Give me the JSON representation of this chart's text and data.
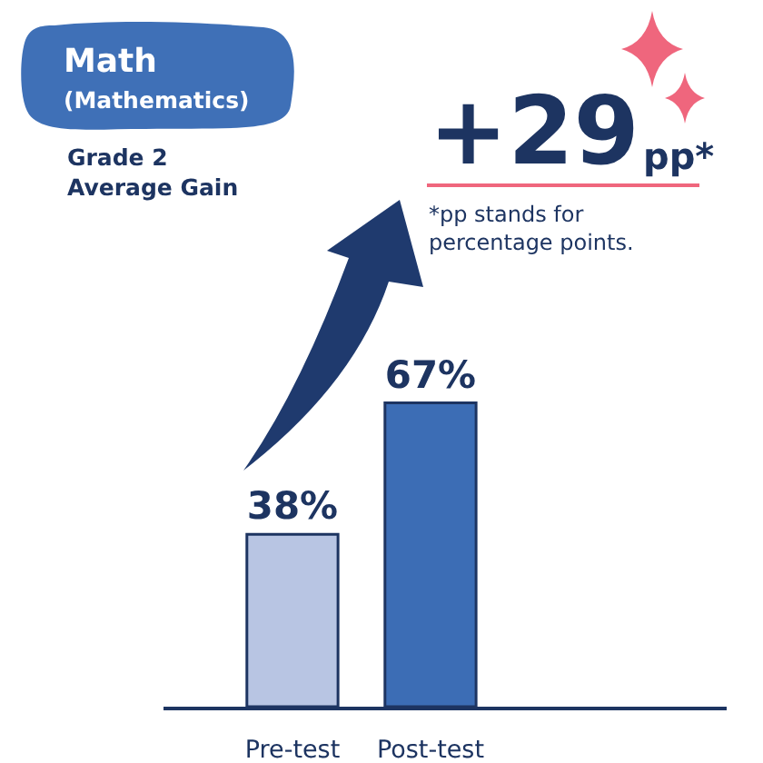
{
  "chart_data": {
    "type": "bar",
    "title": "Math",
    "subtitle": "(Mathematics)",
    "categories": [
      "Pre-test",
      "Post-test"
    ],
    "values": [
      38,
      67
    ],
    "colors": [
      "#b8c5e3",
      "#3c6db5"
    ],
    "value_labels": [
      "38%",
      "67%"
    ],
    "tick_labels": "x",
    "annotations": [
      "Grade 2\nAverage Gain",
      "+29",
      "pp*",
      "*pp stands for\npercentage points."
    ]
  }
}
